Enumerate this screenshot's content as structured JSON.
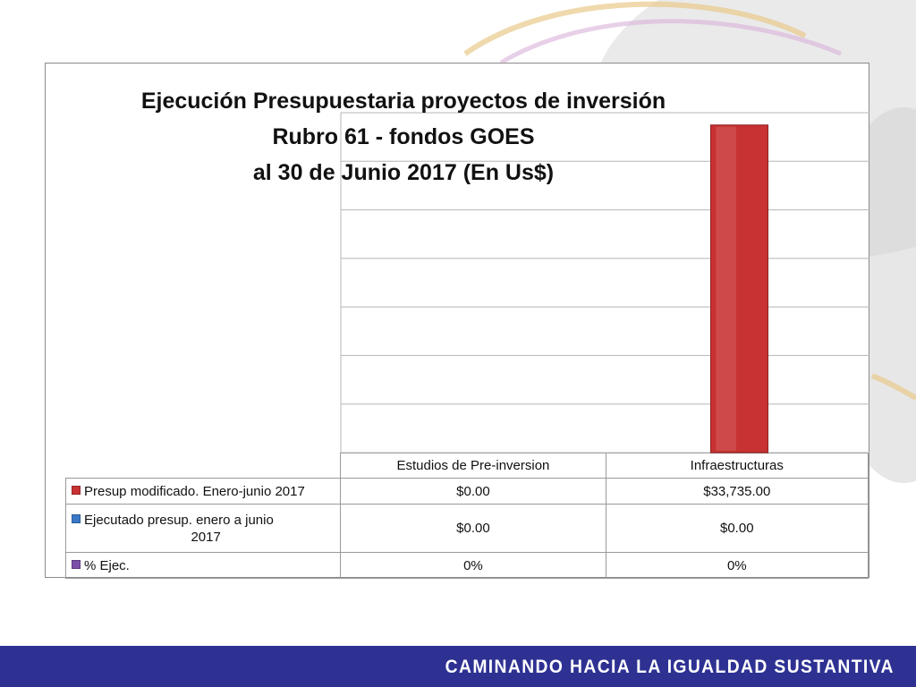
{
  "chart_data": {
    "type": "bar",
    "title_lines": [
      "Ejecución Presupuestaria proyectos de inversión",
      "Rubro 61 - fondos GOES",
      "al 30 de Junio 2017 (En Us$)"
    ],
    "categories": [
      "Estudios de Pre-inversion",
      "Infraestructuras"
    ],
    "series": [
      {
        "name": "Presup modificado. Enero-junio 2017",
        "values": [
          0,
          33735
        ],
        "color": "#c83232"
      },
      {
        "name": "Ejecutado presup. enero a junio 2017",
        "values": [
          0,
          0
        ],
        "color": "#3a78c8"
      },
      {
        "name": "% Ejec.",
        "values": [
          0,
          0
        ],
        "color": "#7b4fa8"
      }
    ],
    "ylim": [
      0,
      35000
    ],
    "grid": true,
    "legend": "data-table"
  },
  "table": {
    "rows": [
      {
        "label": "Presup modificado. Enero-junio 2017",
        "label_lines": [
          "Presup modificado. Enero-junio 2017"
        ],
        "color": "#c83232",
        "cells": [
          "$0.00",
          "$33,735.00"
        ]
      },
      {
        "label": "Ejecutado presup. enero a junio 2017",
        "label_lines": [
          "Ejecutado presup. enero a junio",
          "2017"
        ],
        "color": "#3a78c8",
        "cells": [
          "$0.00",
          "$0.00"
        ]
      },
      {
        "label": "% Ejec.",
        "label_lines": [
          "% Ejec."
        ],
        "color": "#7b4fa8",
        "cells": [
          "0%",
          "0%"
        ]
      }
    ]
  },
  "footer": {
    "text": "CAMINANDO HACIA LA IGUALDAD SUSTANTIVA"
  }
}
